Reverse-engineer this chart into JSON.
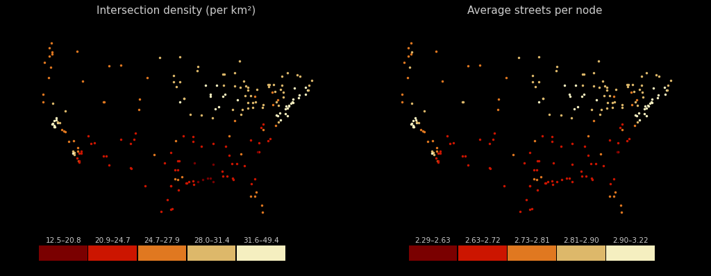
{
  "title_left": "Intersection density (per km²)",
  "title_right": "Average streets per node",
  "background_color": "#000000",
  "map_face_color": "#3d3d3d",
  "map_edge_color": "#606060",
  "colorbar_colors": [
    "#7a0000",
    "#cc1500",
    "#e07820",
    "#ddb86a",
    "#f5efc0"
  ],
  "legend_labels_left": [
    "12.5–20.8",
    "20.9–24.7",
    "24.7–27.9",
    "28.0–31.4",
    "31.6–49.4"
  ],
  "legend_labels_right": [
    "2.29–2.63",
    "2.63–2.72",
    "2.73–2.81",
    "2.81–2.90",
    "2.90–3.22"
  ],
  "title_color": "#cccccc",
  "title_fontsize": 11,
  "legend_fontsize": 7.5,
  "cities": [
    {
      "lon": -122.33,
      "lat": 47.6,
      "val1": 2,
      "val2": 3
    },
    {
      "lon": -122.45,
      "lat": 37.77,
      "val1": 4,
      "val2": 4
    },
    {
      "lon": -118.24,
      "lat": 34.05,
      "val1": 3,
      "val2": 3
    },
    {
      "lon": -117.15,
      "lat": 32.72,
      "val1": 2,
      "val2": 2
    },
    {
      "lon": -121.89,
      "lat": 37.34,
      "val1": 4,
      "val2": 4
    },
    {
      "lon": -119.77,
      "lat": 36.74,
      "val1": 2,
      "val2": 2
    },
    {
      "lon": -117.88,
      "lat": 33.85,
      "val1": 3,
      "val2": 3
    },
    {
      "lon": -115.14,
      "lat": 36.17,
      "val1": 1,
      "val2": 1
    },
    {
      "lon": -112.07,
      "lat": 33.45,
      "val1": 1,
      "val2": 1
    },
    {
      "lon": -111.89,
      "lat": 40.76,
      "val1": 2,
      "val2": 3
    },
    {
      "lon": -104.98,
      "lat": 39.74,
      "val1": 2,
      "val2": 2
    },
    {
      "lon": -105.94,
      "lat": 35.68,
      "val1": 1,
      "val2": 1
    },
    {
      "lon": -97.51,
      "lat": 35.47,
      "val1": 2,
      "val2": 2
    },
    {
      "lon": -97.74,
      "lat": 30.27,
      "val1": 2,
      "val2": 2
    },
    {
      "lon": -95.37,
      "lat": 29.76,
      "val1": 1,
      "val2": 1
    },
    {
      "lon": -96.8,
      "lat": 32.78,
      "val1": 1,
      "val2": 1
    },
    {
      "lon": -90.19,
      "lat": 38.63,
      "val1": 3,
      "val2": 3
    },
    {
      "lon": -87.63,
      "lat": 41.85,
      "val1": 4,
      "val2": 4
    },
    {
      "lon": -86.16,
      "lat": 39.77,
      "val1": 3,
      "val2": 3
    },
    {
      "lon": -84.39,
      "lat": 33.75,
      "val1": 2,
      "val2": 2
    },
    {
      "lon": -84.51,
      "lat": 39.1,
      "val1": 3,
      "val2": 3
    },
    {
      "lon": -83.05,
      "lat": 42.33,
      "val1": 3,
      "val2": 3
    },
    {
      "lon": -81.69,
      "lat": 41.5,
      "val1": 2,
      "val2": 2
    },
    {
      "lon": -80.19,
      "lat": 25.77,
      "val1": 2,
      "val2": 2
    },
    {
      "lon": -81.38,
      "lat": 28.54,
      "val1": 2,
      "val2": 2
    },
    {
      "lon": -82.46,
      "lat": 27.95,
      "val1": 2,
      "val2": 2
    },
    {
      "lon": -80.84,
      "lat": 35.23,
      "val1": 1,
      "val2": 1
    },
    {
      "lon": -77.03,
      "lat": 38.9,
      "val1": 4,
      "val2": 4
    },
    {
      "lon": -75.16,
      "lat": 39.95,
      "val1": 4,
      "val2": 4
    },
    {
      "lon": -74.0,
      "lat": 40.71,
      "val1": 4,
      "val2": 4
    },
    {
      "lon": -71.06,
      "lat": 42.36,
      "val1": 4,
      "val2": 4
    },
    {
      "lon": -72.68,
      "lat": 41.76,
      "val1": 4,
      "val2": 4
    },
    {
      "lon": -73.75,
      "lat": 42.65,
      "val1": 4,
      "val2": 4
    },
    {
      "lon": -76.15,
      "lat": 43.05,
      "val1": 3,
      "val2": 3
    },
    {
      "lon": -78.87,
      "lat": 42.89,
      "val1": 3,
      "val2": 3
    },
    {
      "lon": -76.61,
      "lat": 39.29,
      "val1": 4,
      "val2": 4
    },
    {
      "lon": -79.96,
      "lat": 40.44,
      "val1": 3,
      "val2": 3
    },
    {
      "lon": -80.01,
      "lat": 37.78,
      "val1": 1,
      "val2": 1
    },
    {
      "lon": -85.76,
      "lat": 38.25,
      "val1": 2,
      "val2": 2
    },
    {
      "lon": -86.78,
      "lat": 36.17,
      "val1": 2,
      "val2": 2
    },
    {
      "lon": -89.99,
      "lat": 35.15,
      "val1": 1,
      "val2": 1
    },
    {
      "lon": -90.07,
      "lat": 29.95,
      "val1": 0,
      "val2": 1
    },
    {
      "lon": -88.02,
      "lat": 44.52,
      "val1": 3,
      "val2": 3
    },
    {
      "lon": -87.91,
      "lat": 43.04,
      "val1": 3,
      "val2": 3
    },
    {
      "lon": -93.27,
      "lat": 44.98,
      "val1": 3,
      "val2": 3
    },
    {
      "lon": -93.1,
      "lat": 45.58,
      "val1": 3,
      "val2": 3
    },
    {
      "lon": -96.79,
      "lat": 46.88,
      "val1": 3,
      "val2": 3
    },
    {
      "lon": -100.78,
      "lat": 46.81,
      "val1": 3,
      "val2": 3
    },
    {
      "lon": -98.0,
      "lat": 44.37,
      "val1": 3,
      "val2": 3
    },
    {
      "lon": -96.73,
      "lat": 40.82,
      "val1": 4,
      "val2": 4
    },
    {
      "lon": -95.93,
      "lat": 41.26,
      "val1": 4,
      "val2": 4
    },
    {
      "lon": -94.58,
      "lat": 39.1,
      "val1": 3,
      "val2": 3
    },
    {
      "lon": -92.33,
      "lat": 38.95,
      "val1": 3,
      "val2": 3
    },
    {
      "lon": -92.33,
      "lat": 34.75,
      "val1": 1,
      "val2": 1
    },
    {
      "lon": -88.89,
      "lat": 40.12,
      "val1": 4,
      "val2": 4
    },
    {
      "lon": -89.65,
      "lat": 39.8,
      "val1": 4,
      "val2": 4
    },
    {
      "lon": -88.08,
      "lat": 41.52,
      "val1": 4,
      "val2": 4
    },
    {
      "lon": -85.14,
      "lat": 41.08,
      "val1": 4,
      "val2": 4
    },
    {
      "lon": -85.67,
      "lat": 42.96,
      "val1": 3,
      "val2": 3
    },
    {
      "lon": -83.94,
      "lat": 43.61,
      "val1": 3,
      "val2": 3
    },
    {
      "lon": -83.05,
      "lat": 42.73,
      "val1": 3,
      "val2": 3
    },
    {
      "lon": -82.48,
      "lat": 41.65,
      "val1": 3,
      "val2": 3
    },
    {
      "lon": -81.24,
      "lat": 42.47,
      "val1": 3,
      "val2": 3
    },
    {
      "lon": -81.53,
      "lat": 40.8,
      "val1": 3,
      "val2": 3
    },
    {
      "lon": -82.01,
      "lat": 40.0,
      "val1": 3,
      "val2": 3
    },
    {
      "lon": -83.01,
      "lat": 39.96,
      "val1": 3,
      "val2": 3
    },
    {
      "lon": -84.2,
      "lat": 39.76,
      "val1": 3,
      "val2": 3
    },
    {
      "lon": -78.0,
      "lat": 40.44,
      "val1": 2,
      "val2": 2
    },
    {
      "lon": -77.37,
      "lat": 40.79,
      "val1": 3,
      "val2": 3
    },
    {
      "lon": -75.88,
      "lat": 41.41,
      "val1": 3,
      "val2": 3
    },
    {
      "lon": -74.17,
      "lat": 40.74,
      "val1": 4,
      "val2": 4
    },
    {
      "lon": -73.94,
      "lat": 41.17,
      "val1": 4,
      "val2": 4
    },
    {
      "lon": -72.92,
      "lat": 41.3,
      "val1": 4,
      "val2": 4
    },
    {
      "lon": -71.41,
      "lat": 41.82,
      "val1": 4,
      "val2": 4
    },
    {
      "lon": -70.94,
      "lat": 42.33,
      "val1": 3,
      "val2": 3
    },
    {
      "lon": -71.45,
      "lat": 42.73,
      "val1": 4,
      "val2": 4
    },
    {
      "lon": -70.25,
      "lat": 43.66,
      "val1": 3,
      "val2": 3
    },
    {
      "lon": -70.78,
      "lat": 43.08,
      "val1": 3,
      "val2": 3
    },
    {
      "lon": -72.58,
      "lat": 44.26,
      "val1": 3,
      "val2": 3
    },
    {
      "lon": -73.21,
      "lat": 44.48,
      "val1": 3,
      "val2": 3
    },
    {
      "lon": -75.15,
      "lat": 44.7,
      "val1": 3,
      "val2": 3
    },
    {
      "lon": -76.15,
      "lat": 44.25,
      "val1": 3,
      "val2": 3
    },
    {
      "lon": -77.89,
      "lat": 43.16,
      "val1": 3,
      "val2": 3
    },
    {
      "lon": -78.75,
      "lat": 43.1,
      "val1": 3,
      "val2": 3
    },
    {
      "lon": -79.07,
      "lat": 43.17,
      "val1": 3,
      "val2": 3
    },
    {
      "lon": -76.5,
      "lat": 42.44,
      "val1": 3,
      "val2": 3
    },
    {
      "lon": -75.91,
      "lat": 42.1,
      "val1": 3,
      "val2": 3
    },
    {
      "lon": -77.61,
      "lat": 42.15,
      "val1": 3,
      "val2": 3
    },
    {
      "lon": -78.19,
      "lat": 42.09,
      "val1": 2,
      "val2": 2
    },
    {
      "lon": -77.01,
      "lat": 41.04,
      "val1": 2,
      "val2": 2
    },
    {
      "lon": -76.88,
      "lat": 40.27,
      "val1": 3,
      "val2": 3
    },
    {
      "lon": -75.37,
      "lat": 40.2,
      "val1": 4,
      "val2": 4
    },
    {
      "lon": -74.87,
      "lat": 40.33,
      "val1": 4,
      "val2": 4
    },
    {
      "lon": -74.36,
      "lat": 40.59,
      "val1": 4,
      "val2": 4
    },
    {
      "lon": -74.76,
      "lat": 40.22,
      "val1": 4,
      "val2": 4
    },
    {
      "lon": -75.56,
      "lat": 39.83,
      "val1": 4,
      "val2": 4
    },
    {
      "lon": -75.53,
      "lat": 39.17,
      "val1": 4,
      "val2": 4
    },
    {
      "lon": -75.07,
      "lat": 38.9,
      "val1": 4,
      "val2": 4
    },
    {
      "lon": -77.3,
      "lat": 39.01,
      "val1": 4,
      "val2": 4
    },
    {
      "lon": -76.49,
      "lat": 38.29,
      "val1": 4,
      "val2": 4
    },
    {
      "lon": -76.87,
      "lat": 38.0,
      "val1": 3,
      "val2": 3
    },
    {
      "lon": -77.47,
      "lat": 37.54,
      "val1": 2,
      "val2": 2
    },
    {
      "lon": -79.94,
      "lat": 36.98,
      "val1": 2,
      "val2": 2
    },
    {
      "lon": -79.07,
      "lat": 35.53,
      "val1": 1,
      "val2": 1
    },
    {
      "lon": -78.64,
      "lat": 35.78,
      "val1": 1,
      "val2": 1
    },
    {
      "lon": -80.84,
      "lat": 34.0,
      "val1": 1,
      "val2": 1
    },
    {
      "lon": -81.03,
      "lat": 33.99,
      "val1": 0,
      "val2": 0
    },
    {
      "lon": -82.55,
      "lat": 35.6,
      "val1": 1,
      "val2": 1
    },
    {
      "lon": -83.74,
      "lat": 32.08,
      "val1": 1,
      "val2": 1
    },
    {
      "lon": -85.31,
      "lat": 32.37,
      "val1": 1,
      "val2": 1
    },
    {
      "lon": -86.3,
      "lat": 32.36,
      "val1": 1,
      "val2": 1
    },
    {
      "lon": -87.56,
      "lat": 34.73,
      "val1": 1,
      "val2": 1
    },
    {
      "lon": -86.81,
      "lat": 33.52,
      "val1": 1,
      "val2": 1
    },
    {
      "lon": -86.09,
      "lat": 30.4,
      "val1": 1,
      "val2": 1
    },
    {
      "lon": -87.22,
      "lat": 30.7,
      "val1": 1,
      "val2": 1
    },
    {
      "lon": -88.09,
      "lat": 30.7,
      "val1": 1,
      "val2": 1
    },
    {
      "lon": -90.0,
      "lat": 32.3,
      "val1": 0,
      "val2": 1
    },
    {
      "lon": -91.14,
      "lat": 30.45,
      "val1": 0,
      "val2": 1
    },
    {
      "lon": -93.75,
      "lat": 32.52,
      "val1": 0,
      "val2": 1
    },
    {
      "lon": -94.13,
      "lat": 36.06,
      "val1": 1,
      "val2": 1
    },
    {
      "lon": -94.05,
      "lat": 35.38,
      "val1": 1,
      "val2": 1
    },
    {
      "lon": -95.99,
      "lat": 36.15,
      "val1": 1,
      "val2": 1
    },
    {
      "lon": -95.87,
      "lat": 41.26,
      "val1": 3,
      "val2": 3
    },
    {
      "lon": -97.39,
      "lat": 42.88,
      "val1": 3,
      "val2": 3
    },
    {
      "lon": -98.49,
      "lat": 29.42,
      "val1": 1,
      "val2": 1
    },
    {
      "lon": -97.14,
      "lat": 31.55,
      "val1": 1,
      "val2": 1
    },
    {
      "lon": -101.89,
      "lat": 33.58,
      "val1": 2,
      "val2": 2
    },
    {
      "lon": -99.73,
      "lat": 32.45,
      "val1": 1,
      "val2": 1
    },
    {
      "lon": -106.49,
      "lat": 31.76,
      "val1": 1,
      "val2": 1
    },
    {
      "lon": -108.54,
      "lat": 35.68,
      "val1": 1,
      "val2": 1
    },
    {
      "lon": -106.65,
      "lat": 35.08,
      "val1": 1,
      "val2": 1
    },
    {
      "lon": -110.97,
      "lat": 32.22,
      "val1": 1,
      "val2": 1
    },
    {
      "lon": -116.97,
      "lat": 33.83,
      "val1": 1,
      "val2": 1
    },
    {
      "lon": -117.2,
      "lat": 34.11,
      "val1": 2,
      "val2": 2
    },
    {
      "lon": -118.19,
      "lat": 33.77,
      "val1": 4,
      "val2": 4
    },
    {
      "lon": -117.87,
      "lat": 33.63,
      "val1": 3,
      "val2": 3
    },
    {
      "lon": -116.54,
      "lat": 33.82,
      "val1": 1,
      "val2": 1
    },
    {
      "lon": -120.84,
      "lat": 37.98,
      "val1": 3,
      "val2": 3
    },
    {
      "lon": -121.29,
      "lat": 37.97,
      "val1": 4,
      "val2": 4
    },
    {
      "lon": -121.99,
      "lat": 37.55,
      "val1": 4,
      "val2": 4
    },
    {
      "lon": -122.03,
      "lat": 37.37,
      "val1": 4,
      "val2": 4
    },
    {
      "lon": -122.26,
      "lat": 37.87,
      "val1": 4,
      "val2": 4
    },
    {
      "lon": -122.03,
      "lat": 38.24,
      "val1": 4,
      "val2": 4
    },
    {
      "lon": -121.51,
      "lat": 38.58,
      "val1": 4,
      "val2": 4
    },
    {
      "lon": -121.5,
      "lat": 38.31,
      "val1": 4,
      "val2": 4
    },
    {
      "lon": -121.3,
      "lat": 38.07,
      "val1": 3,
      "val2": 3
    },
    {
      "lon": -119.81,
      "lat": 39.53,
      "val1": 3,
      "val2": 3
    },
    {
      "lon": -117.4,
      "lat": 33.18,
      "val1": 1,
      "val2": 1
    },
    {
      "lon": -116.96,
      "lat": 32.62,
      "val1": 1,
      "val2": 1
    },
    {
      "lon": -117.01,
      "lat": 32.76,
      "val1": 1,
      "val2": 1
    },
    {
      "lon": -122.41,
      "lat": 47.25,
      "val1": 2,
      "val2": 2
    },
    {
      "lon": -122.9,
      "lat": 47.04,
      "val1": 2,
      "val2": 2
    },
    {
      "lon": -123.1,
      "lat": 44.05,
      "val1": 2,
      "val2": 2
    },
    {
      "lon": -122.68,
      "lat": 45.52,
      "val1": 2,
      "val2": 3
    },
    {
      "lon": -117.43,
      "lat": 47.66,
      "val1": 2,
      "val2": 2
    },
    {
      "lon": -116.2,
      "lat": 43.61,
      "val1": 2,
      "val2": 2
    },
    {
      "lon": -112.03,
      "lat": 40.76,
      "val1": 2,
      "val2": 3
    },
    {
      "lon": -110.98,
      "lat": 45.66,
      "val1": 2,
      "val2": 2
    },
    {
      "lon": -108.55,
      "lat": 45.78,
      "val1": 2,
      "val2": 2
    },
    {
      "lon": -104.82,
      "lat": 41.14,
      "val1": 2,
      "val2": 2
    },
    {
      "lon": -103.23,
      "lat": 44.08,
      "val1": 2,
      "val2": 2
    },
    {
      "lon": -96.73,
      "lat": 43.55,
      "val1": 3,
      "val2": 3
    },
    {
      "lon": -98.0,
      "lat": 43.53,
      "val1": 3,
      "val2": 3
    },
    {
      "lon": -91.52,
      "lat": 43.02,
      "val1": 4,
      "val2": 4
    },
    {
      "lon": -90.52,
      "lat": 41.52,
      "val1": 4,
      "val2": 4
    },
    {
      "lon": -90.63,
      "lat": 41.78,
      "val1": 4,
      "val2": 4
    },
    {
      "lon": -89.38,
      "lat": 43.07,
      "val1": 4,
      "val2": 4
    },
    {
      "lon": -87.73,
      "lat": 44.52,
      "val1": 3,
      "val2": 3
    },
    {
      "lon": -85.67,
      "lat": 44.76,
      "val1": 3,
      "val2": 3
    },
    {
      "lon": -84.68,
      "lat": 46.35,
      "val1": 3,
      "val2": 3
    },
    {
      "lon": -83.44,
      "lat": 42.95,
      "val1": 3,
      "val2": 3
    },
    {
      "lon": -83.56,
      "lat": 41.66,
      "val1": 3,
      "val2": 3
    },
    {
      "lon": -84.55,
      "lat": 42.73,
      "val1": 3,
      "val2": 3
    },
    {
      "lon": -82.99,
      "lat": 40.72,
      "val1": 3,
      "val2": 3
    },
    {
      "lon": -82.01,
      "lat": 40.72,
      "val1": 3,
      "val2": 3
    },
    {
      "lon": -80.06,
      "lat": 40.06,
      "val1": 3,
      "val2": 3
    },
    {
      "lon": -80.35,
      "lat": 37.32,
      "val1": 1,
      "val2": 1
    },
    {
      "lon": -81.65,
      "lat": 30.33,
      "val1": 1,
      "val2": 1
    },
    {
      "lon": -82.32,
      "lat": 29.65,
      "val1": 1,
      "val2": 1
    },
    {
      "lon": -80.23,
      "lat": 26.71,
      "val1": 2,
      "val2": 2
    },
    {
      "lon": -81.65,
      "lat": 27.95,
      "val1": 2,
      "val2": 2
    },
    {
      "lon": -85.97,
      "lat": 30.18,
      "val1": 1,
      "val2": 1
    },
    {
      "lon": -88.17,
      "lat": 31.31,
      "val1": 1,
      "val2": 1
    },
    {
      "lon": -90.55,
      "lat": 30.42,
      "val1": 0,
      "val2": 1
    },
    {
      "lon": -92.15,
      "lat": 30.22,
      "val1": 0,
      "val2": 1
    },
    {
      "lon": -93.08,
      "lat": 29.95,
      "val1": 0,
      "val2": 1
    },
    {
      "lon": -94.9,
      "lat": 29.9,
      "val1": 1,
      "val2": 1
    },
    {
      "lon": -94.1,
      "lat": 30.08,
      "val1": 1,
      "val2": 1
    },
    {
      "lon": -93.99,
      "lat": 29.59,
      "val1": 1,
      "val2": 1
    },
    {
      "lon": -95.45,
      "lat": 29.76,
      "val1": 1,
      "val2": 1
    },
    {
      "lon": -96.36,
      "lat": 30.61,
      "val1": 2,
      "val2": 2
    },
    {
      "lon": -97.14,
      "lat": 30.24,
      "val1": 2,
      "val2": 2
    },
    {
      "lon": -97.74,
      "lat": 31.55,
      "val1": 1,
      "val2": 1
    },
    {
      "lon": -98.49,
      "lat": 33.91,
      "val1": 1,
      "val2": 1
    },
    {
      "lon": -97.08,
      "lat": 32.75,
      "val1": 1,
      "val2": 1
    },
    {
      "lon": -98.2,
      "lat": 26.22,
      "val1": 1,
      "val2": 1
    },
    {
      "lon": -98.5,
      "lat": 26.13,
      "val1": 1,
      "val2": 1
    },
    {
      "lon": -100.51,
      "lat": 25.9,
      "val1": 1,
      "val2": 1
    },
    {
      "lon": -103.72,
      "lat": 29.36,
      "val1": 1,
      "val2": 1
    },
    {
      "lon": -105.6,
      "lat": 36.5,
      "val1": 1,
      "val2": 1
    },
    {
      "lon": -106.65,
      "lat": 31.83,
      "val1": 1,
      "val2": 1
    },
    {
      "lon": -111.56,
      "lat": 33.42,
      "val1": 1,
      "val2": 1
    },
    {
      "lon": -113.87,
      "lat": 35.21,
      "val1": 1,
      "val2": 1
    },
    {
      "lon": -114.6,
      "lat": 35.14,
      "val1": 1,
      "val2": 1
    },
    {
      "lon": -120.0,
      "lat": 36.8,
      "val1": 2,
      "val2": 2
    },
    {
      "lon": -119.02,
      "lat": 35.37,
      "val1": 2,
      "val2": 2
    },
    {
      "lon": -118.1,
      "lat": 35.48,
      "val1": 2,
      "val2": 2
    },
    {
      "lon": -117.29,
      "lat": 34.53,
      "val1": 2,
      "val2": 2
    },
    {
      "lon": -116.56,
      "lat": 34.07,
      "val1": 1,
      "val2": 1
    },
    {
      "lon": -120.48,
      "lat": 36.96,
      "val1": 2,
      "val2": 2
    },
    {
      "lon": -122.29,
      "lat": 40.59,
      "val1": 3,
      "val2": 3
    },
    {
      "lon": -124.16,
      "lat": 40.8,
      "val1": 2,
      "val2": 2
    },
    {
      "lon": -124.16,
      "lat": 41.77,
      "val1": 2,
      "val2": 2
    },
    {
      "lon": -123.86,
      "lat": 46.14,
      "val1": 2,
      "val2": 2
    },
    {
      "lon": -122.48,
      "lat": 48.74,
      "val1": 2,
      "val2": 2
    },
    {
      "lon": -122.91,
      "lat": 48.11,
      "val1": 2,
      "val2": 2
    },
    {
      "lon": -98.49,
      "lat": 29.42,
      "val1": 1,
      "val2": 1
    },
    {
      "lon": -97.05,
      "lat": 28.8,
      "val1": 1,
      "val2": 1
    },
    {
      "lon": -99.25,
      "lat": 27.5,
      "val1": 1,
      "val2": 1
    }
  ]
}
